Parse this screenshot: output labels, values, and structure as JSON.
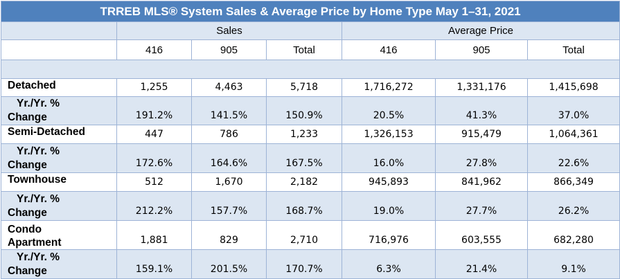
{
  "title": "TRREB MLS® System Sales & Average Price by Home Type May 1–31, 2021",
  "groups": {
    "sales": "Sales",
    "avg_price": "Average Price"
  },
  "columns": [
    "416",
    "905",
    "Total",
    "416",
    "905",
    "Total"
  ],
  "rows": [
    {
      "label": "Detached",
      "values": [
        "1,255",
        "4,463",
        "5,718",
        "1,716,272",
        "1,331,176",
        "1,415,698"
      ]
    },
    {
      "label_line1": "Yr./Yr. %",
      "label_line2": "Change",
      "values": [
        "191.2%",
        "141.5%",
        "150.9%",
        "20.5%",
        "41.3%",
        "37.0%"
      ]
    },
    {
      "label": "Semi-Detached",
      "values": [
        "447",
        "786",
        "1,233",
        "1,326,153",
        "915,479",
        "1,064,361"
      ]
    },
    {
      "label_line1": "Yr./Yr. %",
      "label_line2": "Change",
      "values": [
        "172.6%",
        "164.6%",
        "167.5%",
        "16.0%",
        "27.8%",
        "22.6%"
      ]
    },
    {
      "label": "Townhouse",
      "values": [
        "512",
        "1,670",
        "2,182",
        "945,893",
        "841,962",
        "866,349"
      ]
    },
    {
      "label_line1": "Yr./Yr. %",
      "label_line2": "Change",
      "values": [
        "212.2%",
        "157.7%",
        "168.7%",
        "19.0%",
        "27.7%",
        "26.2%"
      ]
    },
    {
      "label_line1": "Condo",
      "label_line2": "Apartment",
      "values": [
        "1,881",
        "829",
        "2,710",
        "716,976",
        "603,555",
        "682,280"
      ]
    },
    {
      "label_line1": "Yr./Yr. %",
      "label_line2": "Change",
      "values": [
        "159.1%",
        "201.5%",
        "170.7%",
        "6.3%",
        "21.4%",
        "9.1%"
      ]
    }
  ],
  "colors": {
    "title_bg": "#4F81BD",
    "band": "#DCE6F2",
    "border": "#9DB3D6"
  }
}
